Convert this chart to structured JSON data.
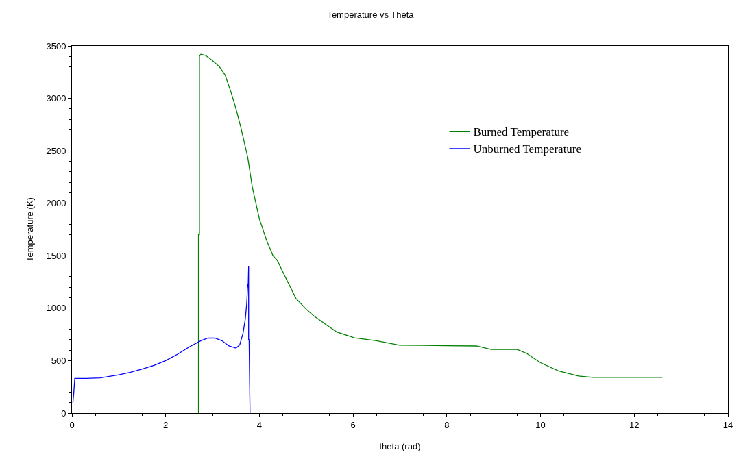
{
  "chart_data": {
    "type": "line",
    "title": "Temperature vs Theta",
    "xlabel": "theta (rad)",
    "ylabel": "Temperature (K)",
    "xlim": [
      0,
      14
    ],
    "xticks": [
      0,
      2,
      4,
      6,
      8,
      10,
      12,
      14
    ],
    "ylim": [
      0,
      3500
    ],
    "yticks": [
      0,
      500,
      1000,
      1500,
      2000,
      2500,
      3000,
      3500
    ],
    "legend": "top right",
    "marker": "none",
    "line_style": "solid",
    "series": [
      {
        "name": "Burned Temperature",
        "color": "#008000",
        "x": [
          2.7,
          2.7,
          2.72,
          2.72,
          2.75,
          2.85,
          3.0,
          3.15,
          3.27,
          3.4,
          3.5,
          3.6,
          3.75,
          3.85,
          4.0,
          4.15,
          4.29,
          4.38,
          4.55,
          4.78,
          5.0,
          5.16,
          5.4,
          5.65,
          6.03,
          6.5,
          6.99,
          7.5,
          8.0,
          8.63,
          8.95,
          9.2,
          9.5,
          9.7,
          10.0,
          10.38,
          10.81,
          11.12,
          12.0,
          12.6
        ],
        "values": [
          0,
          1700,
          1700,
          3400,
          3420,
          3410,
          3360,
          3300,
          3220,
          3050,
          2900,
          2730,
          2440,
          2150,
          1850,
          1650,
          1500,
          1457,
          1300,
          1093,
          990,
          927,
          850,
          773,
          718,
          690,
          647,
          645,
          643,
          640,
          607,
          607,
          607,
          570,
          480,
          402,
          354,
          340,
          340,
          340
        ]
      },
      {
        "name": "Unburned Temperature",
        "color": "#0000ff",
        "x": [
          0.02,
          0.04,
          0.06,
          0.3,
          0.6,
          0.8,
          1.0,
          1.25,
          1.5,
          1.75,
          2.0,
          2.25,
          2.5,
          2.75,
          2.9,
          3.05,
          3.2,
          3.35,
          3.5,
          3.58,
          3.65,
          3.7,
          3.73,
          3.75,
          3.76,
          3.77,
          3.77,
          3.78,
          3.8
        ],
        "values": [
          100,
          200,
          330,
          330,
          335,
          350,
          365,
          390,
          420,
          455,
          500,
          560,
          630,
          690,
          715,
          715,
          690,
          640,
          620,
          650,
          760,
          900,
          1050,
          1230,
          1200,
          1400,
          700,
          700,
          0
        ]
      }
    ]
  }
}
